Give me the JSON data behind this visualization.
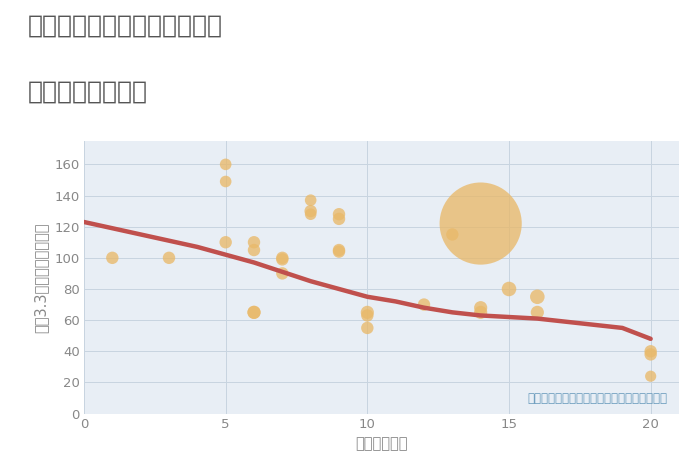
{
  "title_line1": "神奈川県横浜市南区高砂町の",
  "title_line2": "駅距離別土地価格",
  "xlabel": "駅距離（分）",
  "ylabel": "坪（3.3㎡）単価（万円）",
  "annotation": "円の大きさは、取引のあった物件面積を示す",
  "fig_bg_color": "#ffffff",
  "plot_bg_color": "#e8eef5",
  "bubble_color": "#e8b96a",
  "bubble_alpha": 0.78,
  "line_color": "#c0504d",
  "line_width": 3.2,
  "xlim": [
    0,
    21
  ],
  "ylim": [
    0,
    175
  ],
  "xticks": [
    0,
    5,
    10,
    15,
    20
  ],
  "yticks": [
    0,
    20,
    40,
    60,
    80,
    100,
    120,
    140,
    160
  ],
  "scatter_x": [
    1,
    3,
    5,
    5,
    5,
    6,
    6,
    6,
    6,
    7,
    7,
    7,
    8,
    8,
    8,
    9,
    9,
    9,
    9,
    10,
    10,
    10,
    12,
    13,
    14,
    14,
    14,
    15,
    16,
    16,
    20,
    20,
    20
  ],
  "scatter_y": [
    100,
    100,
    160,
    149,
    110,
    65,
    65,
    110,
    105,
    100,
    99,
    90,
    137,
    130,
    128,
    128,
    125,
    105,
    104,
    65,
    63,
    55,
    70,
    115,
    122,
    68,
    65,
    80,
    65,
    75,
    40,
    38,
    24
  ],
  "scatter_size": [
    80,
    80,
    70,
    70,
    80,
    90,
    90,
    80,
    80,
    80,
    80,
    80,
    70,
    80,
    70,
    80,
    80,
    80,
    80,
    90,
    80,
    80,
    80,
    80,
    3500,
    90,
    90,
    110,
    90,
    110,
    80,
    80,
    65
  ],
  "trend_x": [
    0,
    1,
    2,
    3,
    4,
    5,
    6,
    7,
    8,
    9,
    10,
    11,
    12,
    13,
    14,
    15,
    16,
    17,
    18,
    19,
    20
  ],
  "trend_y": [
    123,
    119,
    115,
    111,
    107,
    102,
    97,
    91,
    85,
    80,
    75,
    72,
    68,
    65,
    63,
    62,
    61,
    59,
    57,
    55,
    48
  ],
  "grid_color": "#c8d4e0",
  "tick_color": "#888888",
  "title_color": "#555555",
  "annotation_color": "#6699bb",
  "annotation_fontsize": 8.5,
  "title_fontsize": 18,
  "axis_label_fontsize": 10.5,
  "tick_fontsize": 9.5
}
